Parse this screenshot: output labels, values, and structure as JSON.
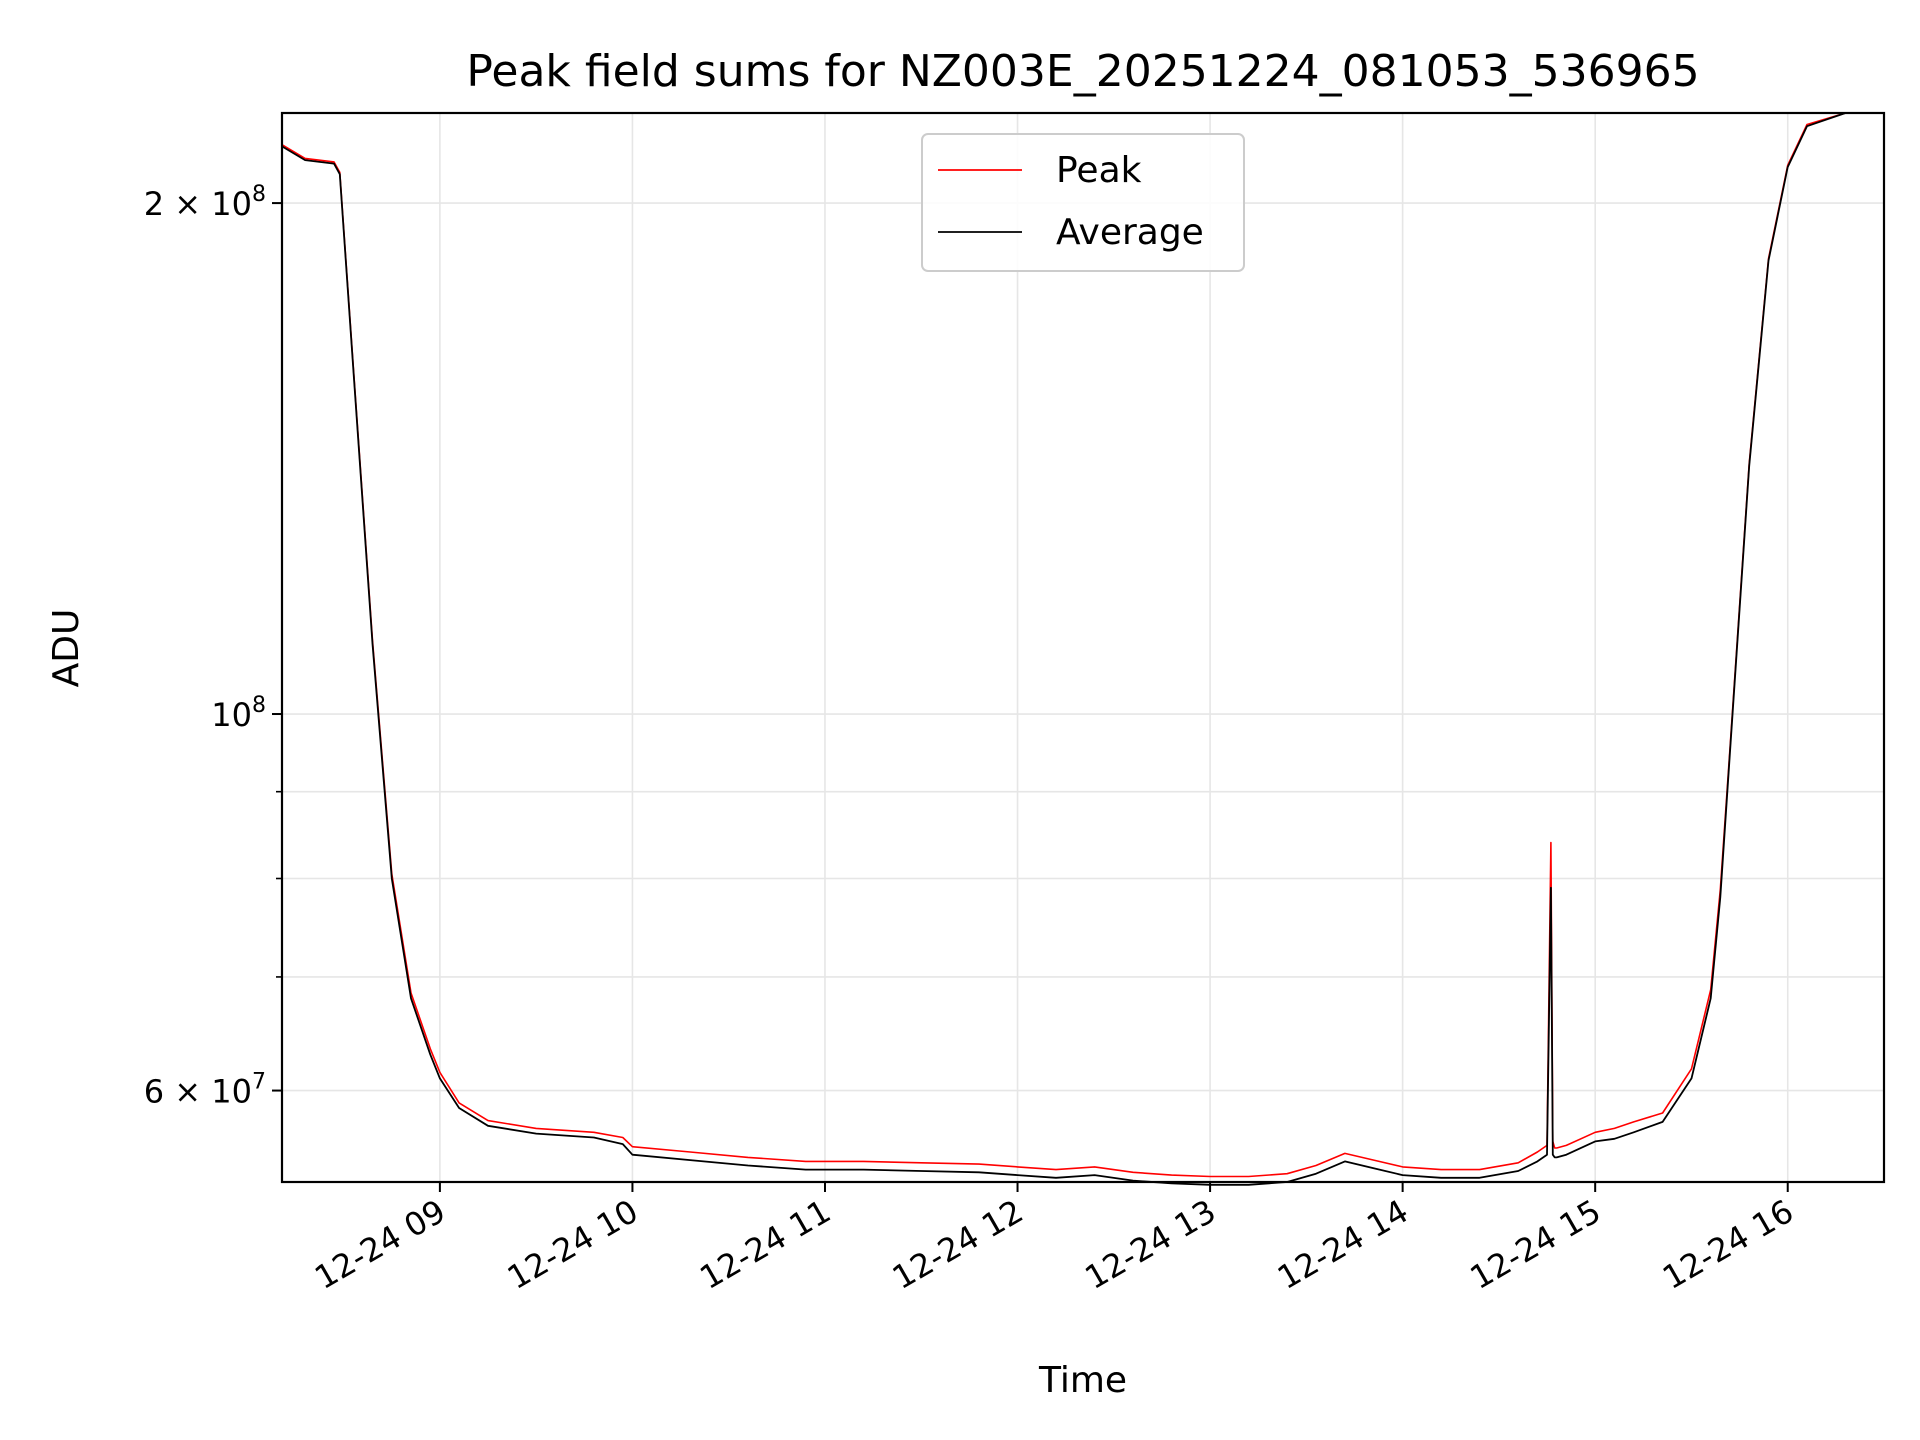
{
  "chart_data": {
    "type": "line",
    "title": "Peak field sums for NZ003E_20251224_081053_536965",
    "xlabel": "Time",
    "ylabel": "ADU",
    "yscale": "log",
    "xlim": [
      8.18,
      16.5
    ],
    "ylim": [
      53000000,
      226000000
    ],
    "x_ticks": [
      {
        "value": 9,
        "label": "12-24 09"
      },
      {
        "value": 10,
        "label": "12-24 10"
      },
      {
        "value": 11,
        "label": "12-24 11"
      },
      {
        "value": 12,
        "label": "12-24 12"
      },
      {
        "value": 13,
        "label": "12-24 13"
      },
      {
        "value": 14,
        "label": "12-24 14"
      },
      {
        "value": 15,
        "label": "12-24 15"
      },
      {
        "value": 16,
        "label": "12-24 16"
      }
    ],
    "y_major_ticks": [
      {
        "value": 60000000,
        "mantissa": "6",
        "exponent": "7"
      },
      {
        "value": 100000000,
        "mantissa": "",
        "exponent": "8"
      },
      {
        "value": 200000000,
        "mantissa": "2",
        "exponent": "8"
      }
    ],
    "y_minor_ticks": [
      70000000,
      80000000,
      90000000
    ],
    "times_symbol": "×",
    "base": "10",
    "grid": true,
    "legend": {
      "position": "upper center",
      "entries": [
        {
          "name": "Peak",
          "color": "#ff0000"
        },
        {
          "name": "Average",
          "color": "#000000"
        }
      ]
    },
    "series": [
      {
        "name": "Average",
        "color": "#000000",
        "x": [
          8.18,
          8.3,
          8.45,
          8.48,
          8.55,
          8.65,
          8.75,
          8.85,
          8.95,
          9.0,
          9.1,
          9.25,
          9.5,
          9.8,
          9.95,
          10.0,
          10.3,
          10.6,
          10.9,
          11.2,
          11.5,
          11.8,
          12.0,
          12.2,
          12.4,
          12.6,
          12.8,
          13.0,
          13.2,
          13.4,
          13.55,
          13.7,
          13.85,
          14.0,
          14.2,
          14.4,
          14.6,
          14.7,
          14.75,
          14.77,
          14.78,
          14.79,
          14.8,
          14.85,
          15.0,
          15.1,
          15.2,
          15.35,
          15.5,
          15.6,
          15.65,
          15.7,
          15.8,
          15.9,
          16.0,
          16.1,
          16.3,
          16.5
        ],
        "y": [
          216000000,
          212000000,
          211000000,
          208000000,
          160000000,
          110000000,
          80000000,
          68000000,
          63000000,
          61000000,
          58600000,
          57200000,
          56600000,
          56300000,
          55800000,
          55000000,
          54600000,
          54200000,
          53900000,
          53900000,
          53800000,
          53700000,
          53500000,
          53300000,
          53500000,
          53100000,
          52900000,
          52800000,
          52800000,
          53000000,
          53600000,
          54500000,
          54000000,
          53500000,
          53300000,
          53300000,
          53800000,
          54500000,
          55000000,
          79000000,
          55000000,
          54800000,
          54800000,
          55000000,
          56000000,
          56200000,
          56700000,
          57500000,
          61000000,
          68000000,
          78000000,
          95000000,
          140000000,
          185000000,
          210000000,
          222000000,
          226000000,
          226000000
        ]
      },
      {
        "name": "Peak",
        "color": "#ff0000",
        "x": [
          8.18,
          8.3,
          8.45,
          8.48,
          8.55,
          8.65,
          8.75,
          8.85,
          8.95,
          9.0,
          9.1,
          9.25,
          9.5,
          9.8,
          9.95,
          10.0,
          10.3,
          10.6,
          10.9,
          11.2,
          11.5,
          11.8,
          12.0,
          12.2,
          12.4,
          12.6,
          12.8,
          13.0,
          13.2,
          13.4,
          13.55,
          13.7,
          13.85,
          14.0,
          14.2,
          14.4,
          14.6,
          14.7,
          14.75,
          14.77,
          14.78,
          14.79,
          14.8,
          14.85,
          15.0,
          15.1,
          15.2,
          15.35,
          15.5,
          15.6,
          15.65,
          15.7,
          15.8,
          15.9,
          16.0,
          16.1,
          16.3,
          16.5
        ],
        "y": [
          216500000,
          212500000,
          211500000,
          208500000,
          160500000,
          110500000,
          80500000,
          68500000,
          63500000,
          61500000,
          59000000,
          57600000,
          57000000,
          56700000,
          56300000,
          55600000,
          55200000,
          54800000,
          54500000,
          54500000,
          54400000,
          54300000,
          54100000,
          53900000,
          54100000,
          53700000,
          53500000,
          53400000,
          53400000,
          53600000,
          54200000,
          55100000,
          54600000,
          54100000,
          53900000,
          53900000,
          54400000,
          55200000,
          55700000,
          84000000,
          56000000,
          55500000,
          55500000,
          55700000,
          56700000,
          57000000,
          57500000,
          58200000,
          61800000,
          68800000,
          78800000,
          95500000,
          140500000,
          185500000,
          210500000,
          222500000,
          226000000,
          226000000
        ]
      }
    ]
  }
}
